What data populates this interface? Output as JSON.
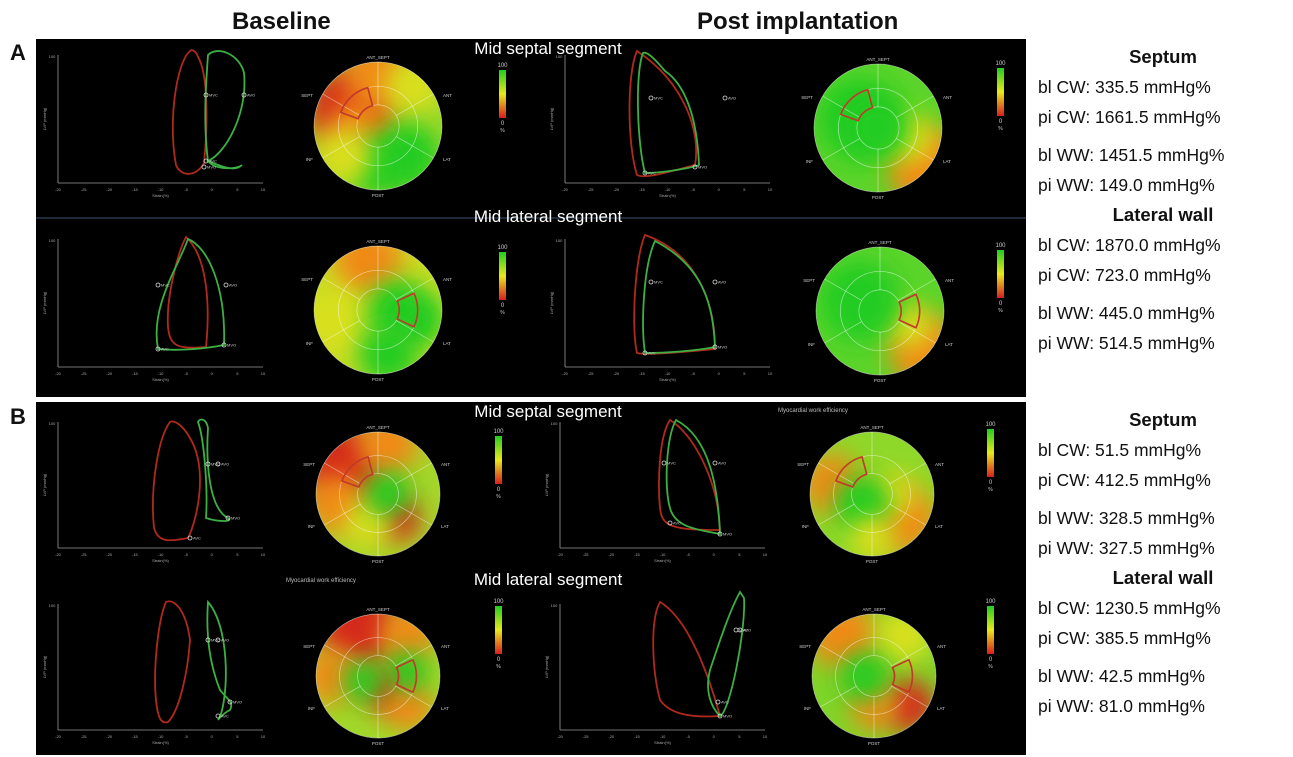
{
  "columns": {
    "baseline": "Baseline",
    "post": "Post implantation"
  },
  "panels": [
    {
      "letter": "A",
      "segments": [
        "Mid septal segment",
        "Mid lateral segment"
      ],
      "stats": {
        "group1": {
          "heading": "Septum",
          "lines": [
            "bl CW: 335.5 mmHg%",
            "pi CW: 1661.5 mmHg%",
            "bl WW: 1451.5 mmHg%",
            "pi WW: 149.0 mmHg%"
          ]
        },
        "group2": {
          "heading": "Lateral wall",
          "lines": [
            "bl CW: 1870.0 mmHg%",
            "pi CW: 723.0 mmHg%",
            "bl WW: 445.0 mmHg%",
            "pi WW: 514.5 mmHg%"
          ]
        }
      }
    },
    {
      "letter": "B",
      "segments": [
        "Mid septal segment",
        "Mid lateral segment"
      ],
      "subtitle": "Myocardial work efficiency",
      "stats": {
        "group1": {
          "heading": "Septum",
          "lines": [
            "bl CW: 51.5 mmHg%",
            "pi CW: 412.5 mmHg%",
            "bl WW: 328.5 mmHg%",
            "pi WW: 327.5 mmHg%"
          ]
        },
        "group2": {
          "heading": "Lateral wall",
          "lines": [
            "bl CW: 1230.5 mmHg%",
            "pi CW: 385.5 mmHg%",
            "bl WW: 42.5 mmHg%",
            "pi WW: 81.0 mmHg%"
          ]
        }
      }
    }
  ],
  "bullseye": {
    "labels": {
      "top": "ANT_SEPT",
      "bottom": "POST",
      "left": "SEPT",
      "right": "ANT",
      "lowerLeft": "INF",
      "lowerRight": "LAT"
    },
    "scale": {
      "max": "100",
      "min": "0",
      "unit": "%"
    }
  },
  "loop": {
    "ylabel": "LVP (mmHg)",
    "xlabel": "Strain(%)",
    "ytick": "100",
    "xticks": [
      "-20",
      "-25",
      "-20",
      "-15",
      "-10",
      "-5",
      "0",
      "5",
      "10"
    ],
    "markers": [
      "MVC",
      "AVO",
      "AVC",
      "MVO"
    ]
  },
  "colors": {
    "efficient": "#22cc22",
    "inefficient": "#cc2222",
    "loop_red": "#b02a1c",
    "loop_green": "#3cb043"
  }
}
